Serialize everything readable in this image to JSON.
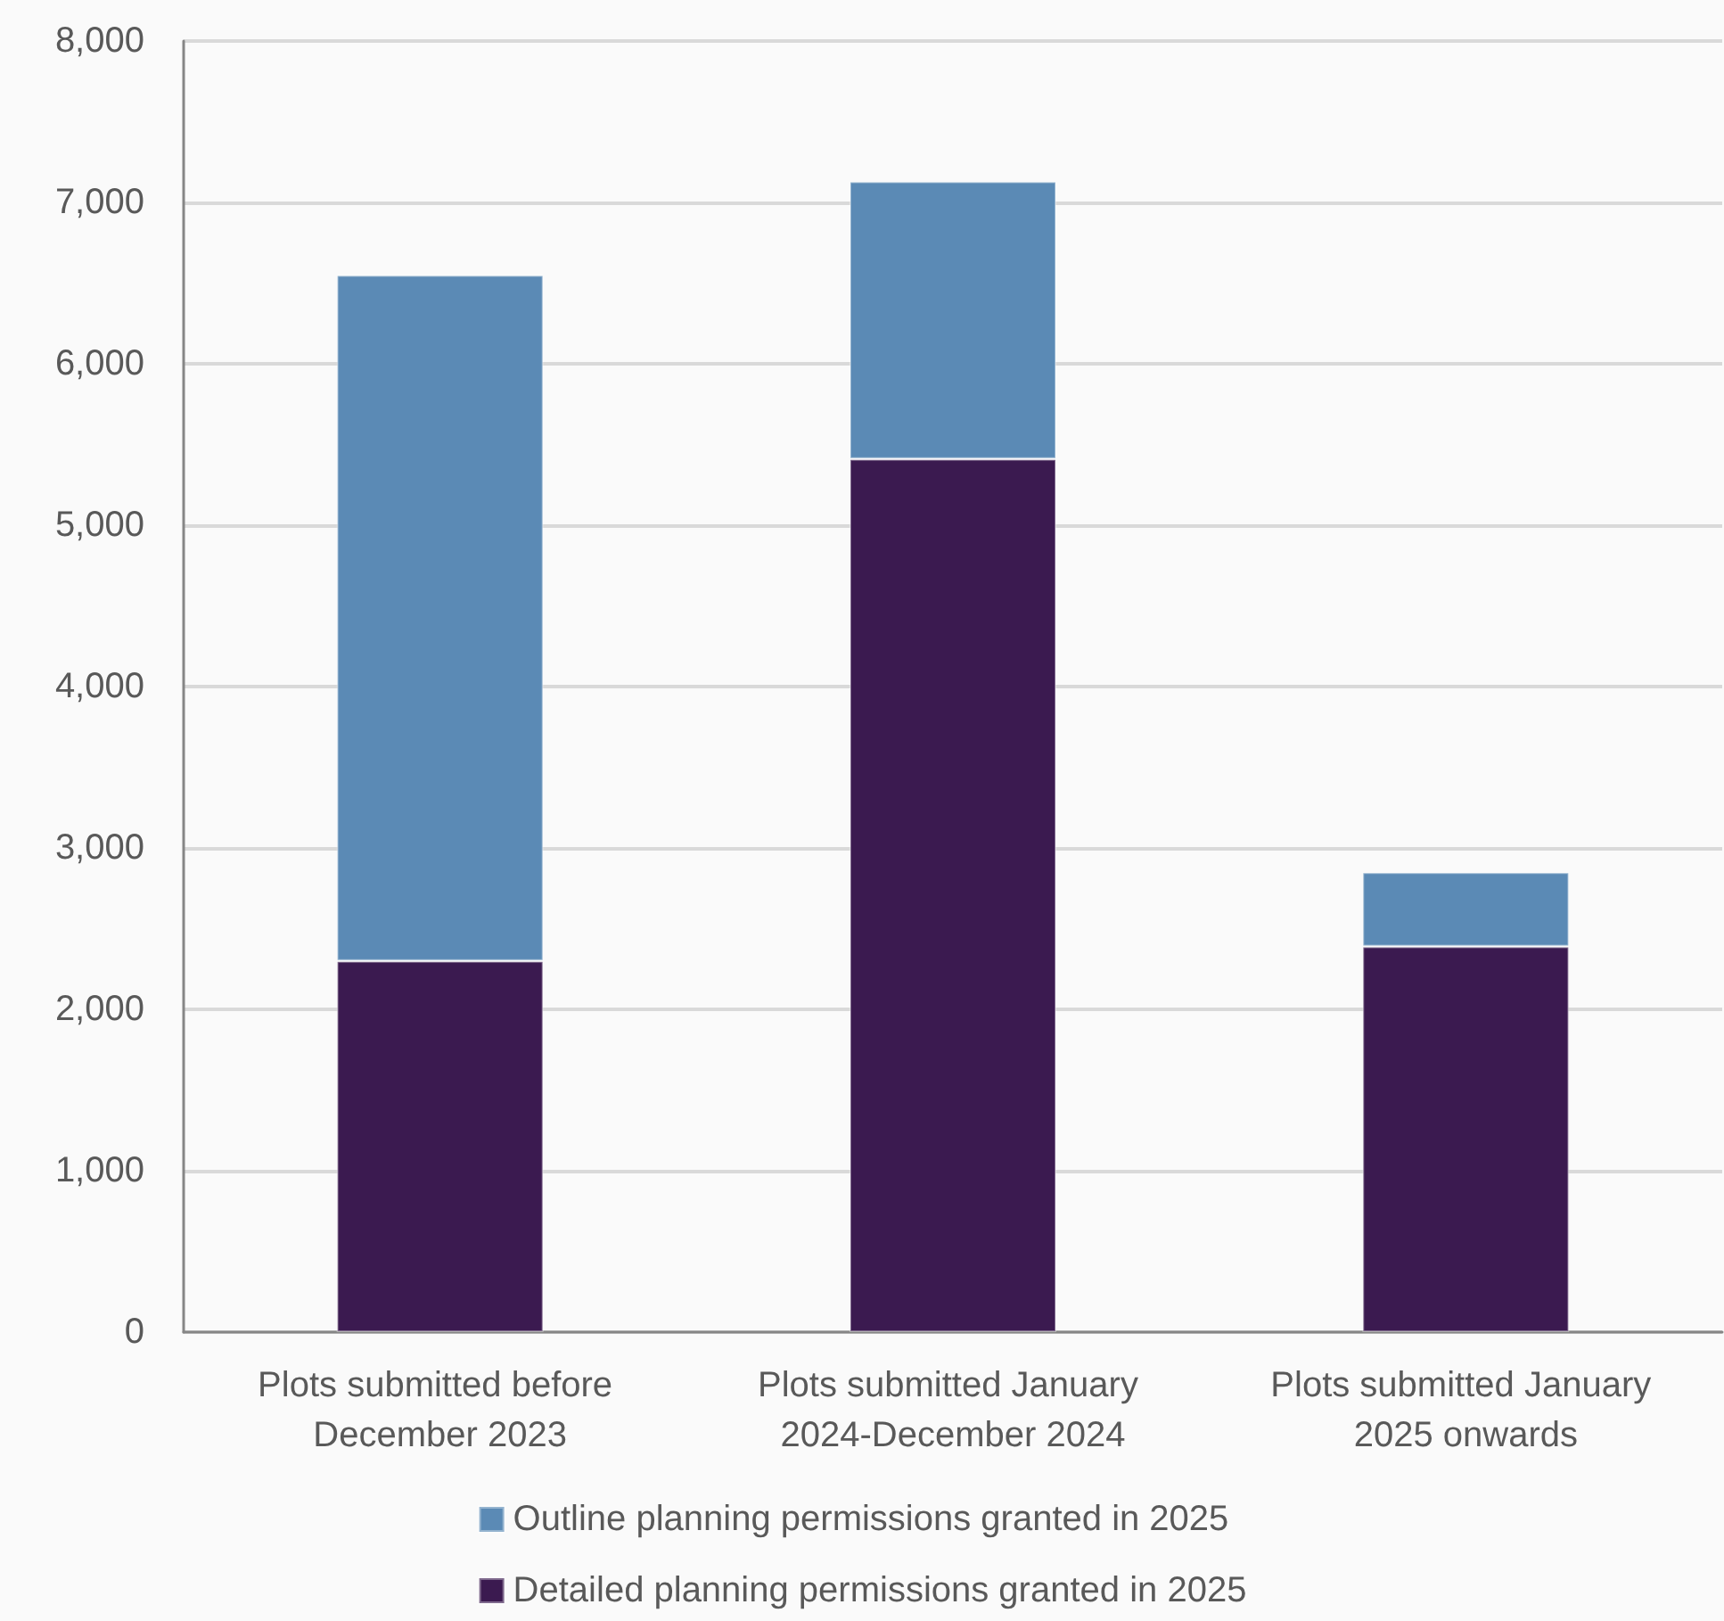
{
  "chart_data": {
    "type": "bar",
    "stacked": true,
    "categories": [
      "Plots submitted before December 2023",
      "Plots submitted January 2024-December 2024",
      "Plots submitted January 2025 onwards"
    ],
    "series": [
      {
        "name": "Detailed planning permissions granted in 2025",
        "color": "#3b1a50",
        "values": [
          2300,
          5410,
          2390
        ]
      },
      {
        "name": "Outline planning permissions granted in 2025",
        "color": "#5b8ab5",
        "values": [
          4250,
          1720,
          460
        ]
      }
    ],
    "ylim": [
      0,
      8000
    ],
    "yticks": [
      {
        "value": 0,
        "label": "0"
      },
      {
        "value": 1000,
        "label": "1,000"
      },
      {
        "value": 2000,
        "label": "2,000"
      },
      {
        "value": 3000,
        "label": "3,000"
      },
      {
        "value": 4000,
        "label": "4,000"
      },
      {
        "value": 5000,
        "label": "5,000"
      },
      {
        "value": 6000,
        "label": "6,000"
      },
      {
        "value": 7000,
        "label": "7,000"
      },
      {
        "value": 8000,
        "label": "8,000"
      }
    ],
    "grid": "y",
    "legend": "bottom"
  }
}
